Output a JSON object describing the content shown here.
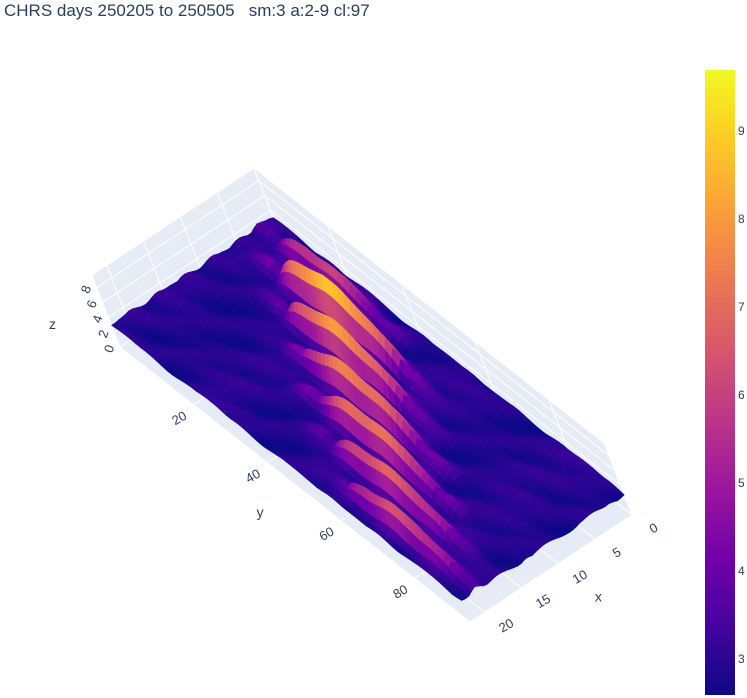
{
  "title": "CHRS days 250205 to 250505   sm:3 a:2-9 cl:97",
  "chart_data": {
    "type": "surface3d",
    "title": "CHRS days 250205 to 250505   sm:3 a:2-9 cl:97",
    "axes": {
      "x": {
        "label": "x",
        "range": [
          0,
          22
        ],
        "ticks": [
          "0",
          "5",
          "10",
          "15",
          "20"
        ]
      },
      "y": {
        "label": "y",
        "range": [
          0,
          95
        ],
        "ticks": [
          "20",
          "40",
          "60",
          "80"
        ]
      },
      "z": {
        "label": "z",
        "range": [
          0,
          9.7
        ],
        "ticks": [
          "0",
          "2",
          "4",
          "6",
          "8"
        ]
      }
    },
    "colorbar": {
      "range": [
        2.6,
        9.7
      ],
      "ticks": [
        "3",
        "4",
        "5",
        "6",
        "7",
        "8",
        "9"
      ],
      "colorscale": [
        "#0d0887",
        "#46039f",
        "#7201a8",
        "#9c179e",
        "#bd3786",
        "#d8576b",
        "#ed7953",
        "#fb9f3a",
        "#fdca26",
        "#f0f921"
      ]
    },
    "surface_ridges": [
      {
        "x_center": 2,
        "y_start": 5,
        "y_end": 35,
        "peak_z": 6.5
      },
      {
        "x_center": 5,
        "y_start": 12,
        "y_end": 48,
        "peak_z": 9.6
      },
      {
        "x_center": 8,
        "y_start": 20,
        "y_end": 55,
        "peak_z": 8.7
      },
      {
        "x_center": 11,
        "y_start": 30,
        "y_end": 65,
        "peak_z": 8.2
      },
      {
        "x_center": 14,
        "y_start": 40,
        "y_end": 75,
        "peak_z": 7.9
      },
      {
        "x_center": 17,
        "y_start": 50,
        "y_end": 85,
        "peak_z": 7.3
      },
      {
        "x_center": 20,
        "y_start": 60,
        "y_end": 92,
        "peak_z": 6.8
      }
    ]
  }
}
